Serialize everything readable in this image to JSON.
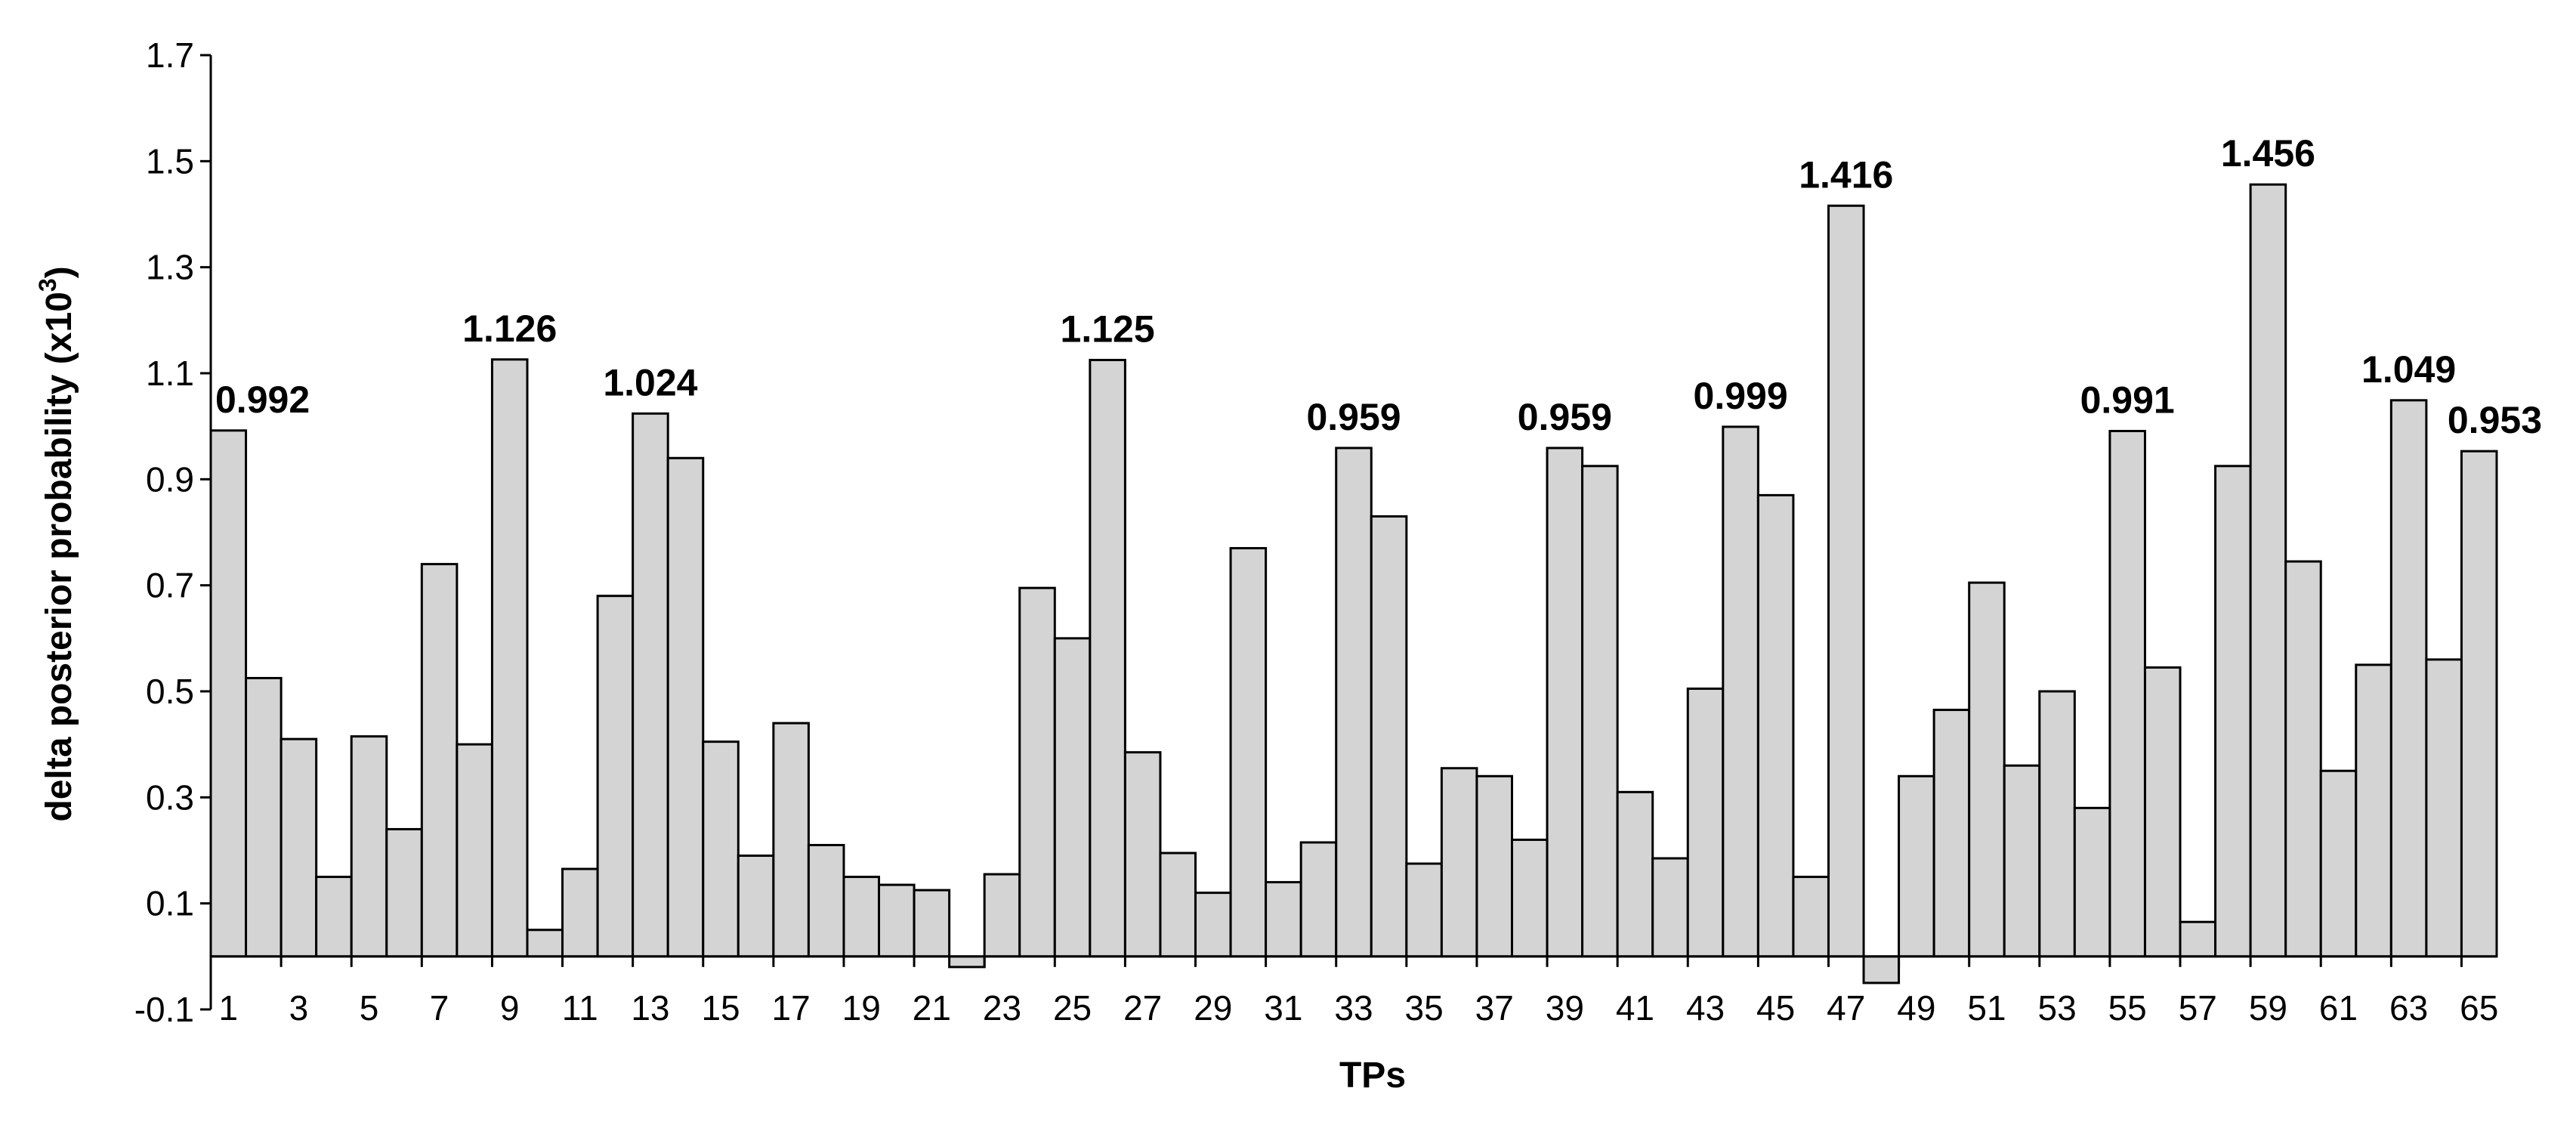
{
  "chart_data": {
    "type": "bar",
    "title": "",
    "xlabel": "TPs",
    "ylabel": "delta posterior probability (x10",
    "ylabel_superscript": "3",
    "ylabel_suffix": ")",
    "ylim": [
      -0.1,
      1.7
    ],
    "yticks": [
      -0.1,
      0.1,
      0.3,
      0.5,
      0.7,
      0.9,
      1.1,
      1.3,
      1.5,
      1.7
    ],
    "ytick_labels": [
      "-0.1",
      "0.1",
      "0.3",
      "0.5",
      "0.7",
      "0.9",
      "1.1",
      "1.3",
      "1.5",
      "1.7"
    ],
    "categories": [
      "1",
      "2",
      "3",
      "4",
      "5",
      "6",
      "7",
      "8",
      "9",
      "10",
      "11",
      "12",
      "13",
      "14",
      "15",
      "16",
      "17",
      "18",
      "19",
      "20",
      "21",
      "22",
      "23",
      "24",
      "25",
      "26",
      "27",
      "28",
      "29",
      "30",
      "31",
      "32",
      "33",
      "34",
      "35",
      "36",
      "37",
      "38",
      "39",
      "40",
      "41",
      "42",
      "43",
      "44",
      "45",
      "46",
      "47",
      "48",
      "49",
      "50",
      "51",
      "52",
      "53",
      "54",
      "55",
      "56",
      "57",
      "58",
      "59",
      "60",
      "61",
      "62",
      "63",
      "64",
      "65"
    ],
    "xtick_labels": [
      "1",
      "3",
      "5",
      "7",
      "9",
      "11",
      "13",
      "15",
      "17",
      "19",
      "21",
      "23",
      "25",
      "27",
      "29",
      "31",
      "33",
      "35",
      "37",
      "39",
      "41",
      "43",
      "45",
      "47",
      "49",
      "51",
      "53",
      "55",
      "57",
      "59",
      "61",
      "63",
      "65"
    ],
    "values": [
      0.992,
      0.525,
      0.41,
      0.15,
      0.415,
      0.24,
      0.74,
      0.4,
      1.126,
      0.05,
      0.165,
      0.68,
      1.024,
      0.94,
      0.405,
      0.19,
      0.44,
      0.21,
      0.15,
      0.135,
      0.125,
      -0.02,
      0.155,
      0.695,
      0.6,
      1.125,
      0.385,
      0.195,
      0.12,
      0.77,
      0.14,
      0.215,
      0.959,
      0.83,
      0.175,
      0.355,
      0.34,
      0.22,
      0.959,
      0.925,
      0.31,
      0.185,
      0.505,
      0.999,
      0.87,
      0.15,
      1.416,
      -0.05,
      0.34,
      0.465,
      0.705,
      0.36,
      0.5,
      0.28,
      0.991,
      0.545,
      0.065,
      0.925,
      1.456,
      0.745,
      0.35,
      0.55,
      1.049,
      0.56,
      0.953
    ],
    "data_labels": [
      {
        "category": "1",
        "text": "0.992"
      },
      {
        "category": "9",
        "text": "1.126"
      },
      {
        "category": "13",
        "text": "1.024"
      },
      {
        "category": "26",
        "text": "1.125"
      },
      {
        "category": "33",
        "text": "0.959"
      },
      {
        "category": "39",
        "text": "0.959"
      },
      {
        "category": "44",
        "text": "0.999"
      },
      {
        "category": "47",
        "text": "1.416"
      },
      {
        "category": "55",
        "text": "0.991"
      },
      {
        "category": "59",
        "text": "1.456"
      },
      {
        "category": "63",
        "text": "1.049"
      },
      {
        "category": "65",
        "text": "0.953"
      }
    ],
    "grid": false,
    "legend": "none",
    "bar_color": "#d4d4d4",
    "bar_edge_color": "#000000"
  }
}
